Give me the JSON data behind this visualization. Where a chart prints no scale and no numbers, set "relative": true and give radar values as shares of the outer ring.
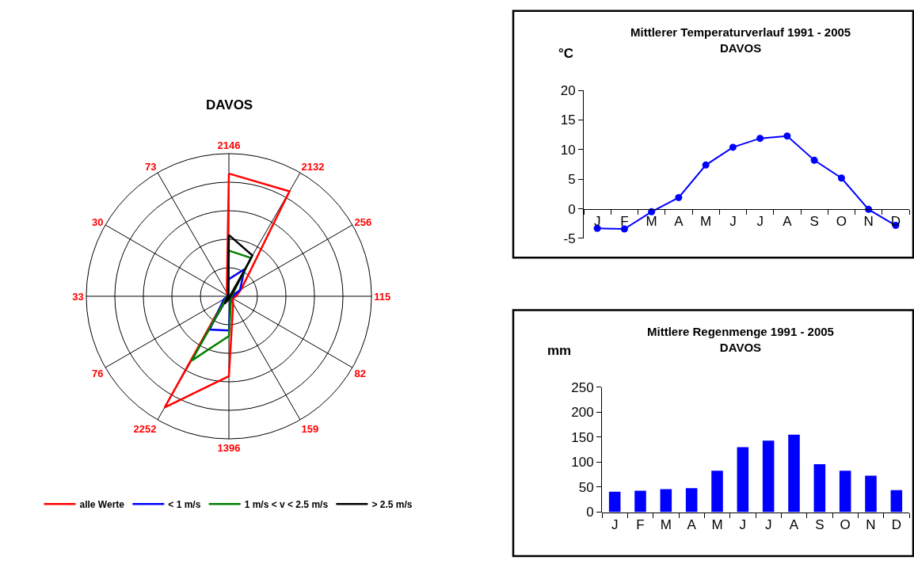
{
  "chart_data": [
    {
      "type": "radar",
      "title": "DAVOS",
      "categories": [
        "2146",
        "2132",
        "256",
        "115",
        "82",
        "159",
        "1396",
        "2252",
        "76",
        "33",
        "30",
        "73"
      ],
      "relative": true,
      "grid": true,
      "legend": "bottom",
      "series": [
        {
          "name": "alle Werte",
          "color": "#ff0000",
          "values": [
            0.86,
            0.85,
            0.1,
            0.05,
            0.03,
            0.06,
            0.56,
            0.9,
            0.03,
            0.01,
            0.01,
            0.03
          ]
        },
        {
          "name": "< 1 m/s",
          "color": "#0000ff",
          "values": [
            0.12,
            0.22,
            0.09,
            0.03,
            0.02,
            0.02,
            0.24,
            0.27,
            0.04,
            0.01,
            0.01,
            0.01
          ]
        },
        {
          "name": "1 m/s < v < 2.5 m/s",
          "color": "#008000",
          "values": [
            0.32,
            0.31,
            0.03,
            0.02,
            0.02,
            0.03,
            0.28,
            0.52,
            0.02,
            0.01,
            0.01,
            0.01
          ]
        },
        {
          "name": "> 2.5 m/s",
          "color": "#000000",
          "values": [
            0.43,
            0.33,
            0.02,
            0.01,
            0.01,
            0.01,
            0.02,
            0.06,
            0.01,
            0.01,
            0.01,
            0.01
          ]
        }
      ]
    },
    {
      "type": "line",
      "title": "Mittlerer Temperaturverlauf 1991 - 2005\nDAVOS",
      "ylabel": "°C",
      "categories": [
        "J",
        "F",
        "M",
        "A",
        "M",
        "J",
        "J",
        "A",
        "S",
        "O",
        "N",
        "D"
      ],
      "color": "#0000ff",
      "marker": "circle",
      "values": [
        -3.3,
        -3.4,
        -0.5,
        1.9,
        7.4,
        10.4,
        11.9,
        12.3,
        8.2,
        5.2,
        -0.1,
        -2.8
      ],
      "ylim": [
        -5,
        20
      ],
      "yticks": [
        -5,
        0,
        5,
        10,
        15,
        20
      ]
    },
    {
      "type": "bar",
      "title": "Mittlere Regenmenge 1991 - 2005\nDAVOS",
      "ylabel": "mm",
      "categories": [
        "J",
        "F",
        "M",
        "A",
        "M",
        "J",
        "J",
        "A",
        "S",
        "O",
        "N",
        "D"
      ],
      "color": "#0000ff",
      "values": [
        41,
        43,
        46,
        48,
        83,
        130,
        143,
        155,
        96,
        83,
        73,
        44
      ],
      "ylim": [
        0,
        250
      ],
      "yticks": [
        0,
        50,
        100,
        150,
        200,
        250
      ]
    }
  ]
}
